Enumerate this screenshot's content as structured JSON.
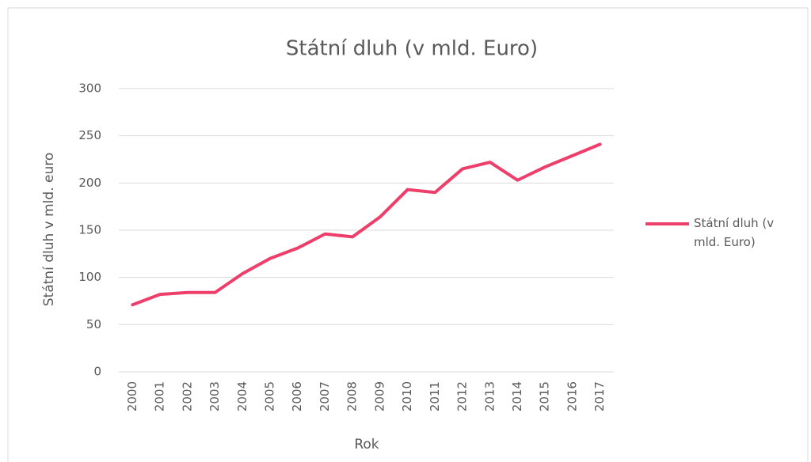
{
  "chart_data": {
    "type": "line",
    "title": "Státní dluh (v mld. Euro)",
    "x_label": "Rok",
    "y_label": "Státní dluh v mld. euro",
    "categories": [
      "2000",
      "2001",
      "2002",
      "2003",
      "2004",
      "2005",
      "2006",
      "2007",
      "2008",
      "2009",
      "2010",
      "2011",
      "2012",
      "2013",
      "2014",
      "2015",
      "2016",
      "2017"
    ],
    "series": [
      {
        "name": "Státní dluh (v mld. Euro)",
        "color": "#ee3f6b",
        "values": [
          71,
          82,
          84,
          84,
          104,
          120,
          131,
          146,
          143,
          164,
          193,
          190,
          215,
          222,
          203,
          217,
          229,
          241
        ]
      }
    ],
    "ylim": [
      0,
      300
    ],
    "yticks": [
      0,
      50,
      100,
      150,
      200,
      250,
      300
    ],
    "grid": true,
    "legend": "right"
  }
}
